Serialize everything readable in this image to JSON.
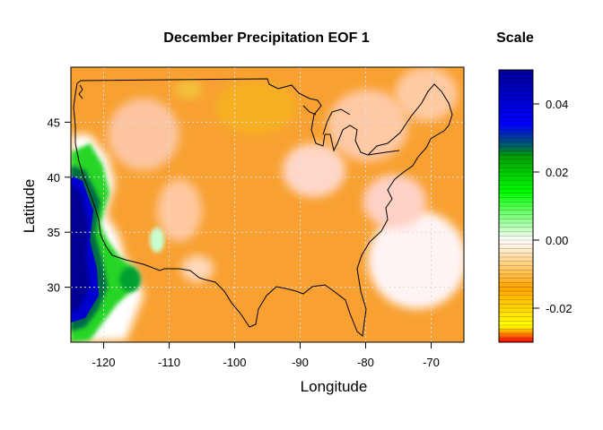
{
  "chart_data": {
    "type": "heatmap",
    "title": "December Precipitation EOF 1",
    "xlabel": "Longitude",
    "ylabel": "Latitude",
    "xlim": [
      -125,
      -65
    ],
    "ylim": [
      25,
      50
    ],
    "xticks": [
      -120,
      -110,
      -100,
      -90,
      -80,
      -70
    ],
    "yticks": [
      30,
      35,
      40,
      45
    ],
    "grid": true,
    "colorbar": {
      "title": "Scale",
      "min": -0.03,
      "max": 0.05,
      "ticks": [
        -0.02,
        0.0,
        0.02,
        0.04
      ],
      "tick_labels": [
        "-0.02",
        "0.00",
        "0.02",
        "0.04"
      ],
      "colors": [
        "#ff0000",
        "#ffff00",
        "#ffa500",
        "#ffffff",
        "#00ff00",
        "#006400",
        "#0000ff",
        "#00008b"
      ]
    },
    "field_regions": [
      {
        "region": "background (most of domain)",
        "value": -0.005
      },
      {
        "region": "Pacific coast 27-40N",
        "value": 0.045
      },
      {
        "region": "Northern California / Oregon coast",
        "value": 0.03
      },
      {
        "region": "Southern California interior",
        "value": 0.025
      },
      {
        "region": "Great Lakes / Northeast",
        "value": 0.001
      },
      {
        "region": "Southeast Atlantic coast",
        "value": 0.002
      },
      {
        "region": "Northern Plains",
        "value": -0.012
      }
    ]
  }
}
